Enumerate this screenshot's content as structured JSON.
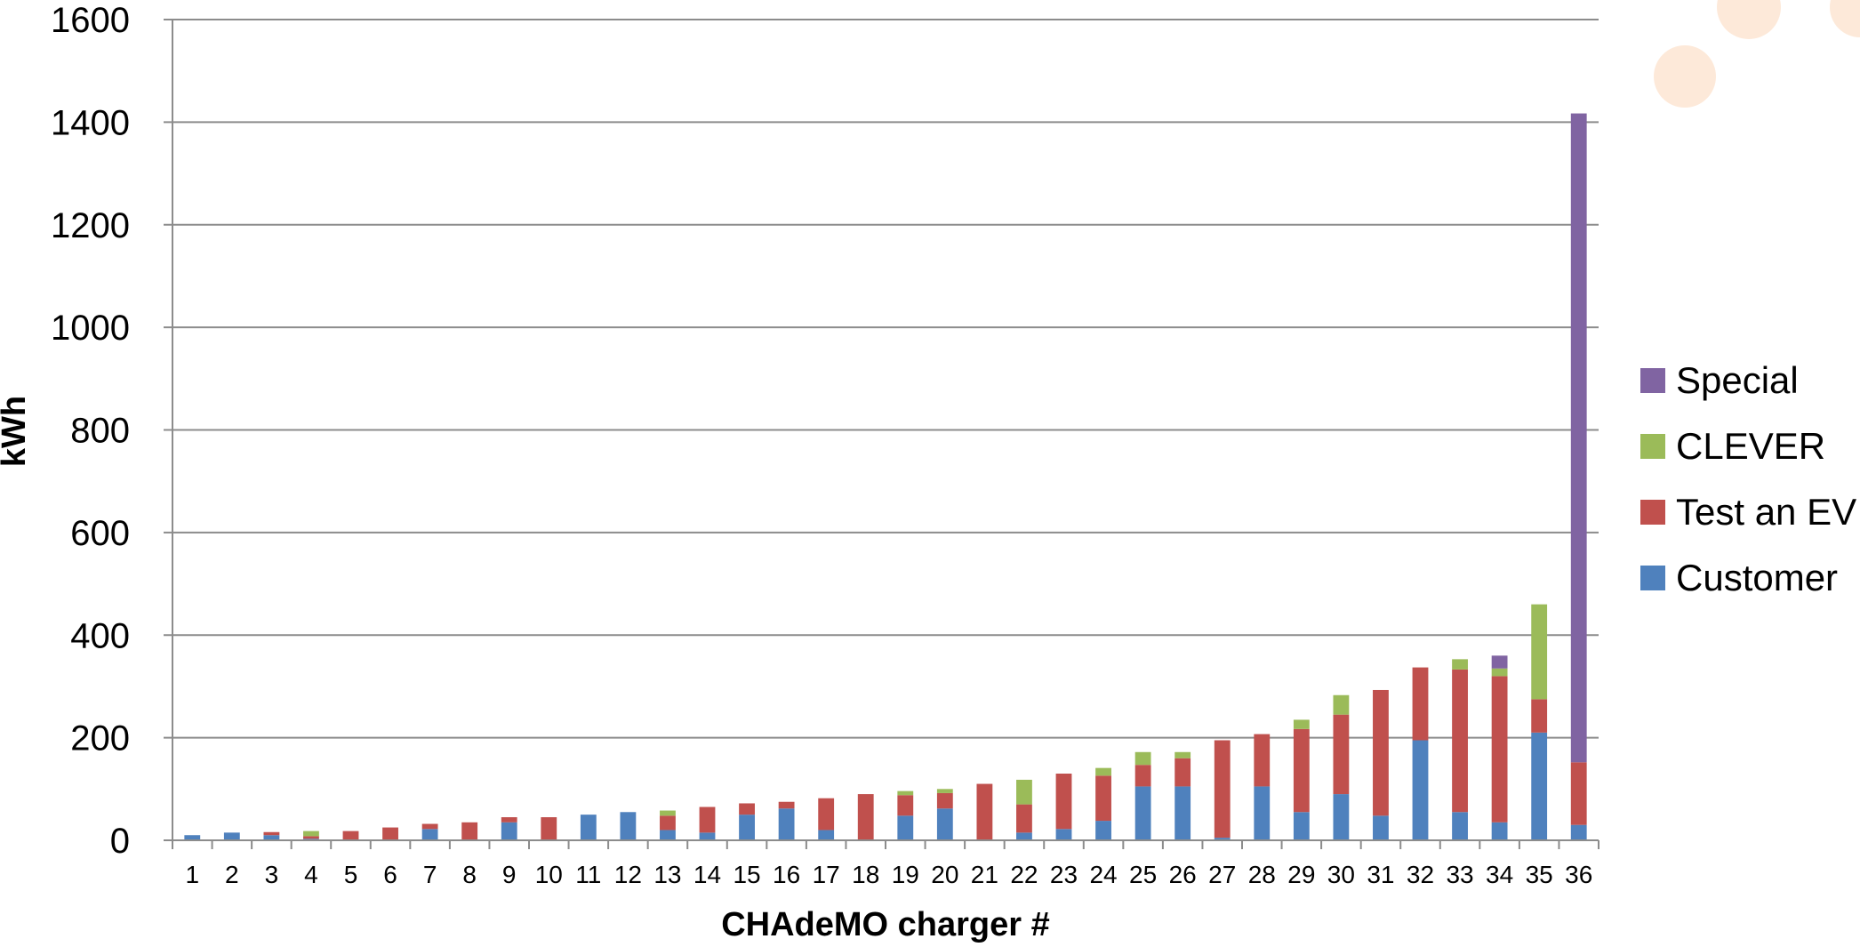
{
  "chart_data": {
    "type": "bar",
    "stacked": true,
    "xlabel": "CHAdeMO charger #",
    "ylabel": "kWh",
    "ylim": [
      0,
      1600
    ],
    "yticks": [
      0,
      200,
      400,
      600,
      800,
      1000,
      1200,
      1400,
      1600
    ],
    "grid": true,
    "legend_position": "right",
    "categories": [
      "1",
      "2",
      "3",
      "4",
      "5",
      "6",
      "7",
      "8",
      "9",
      "10",
      "11",
      "12",
      "13",
      "14",
      "15",
      "16",
      "17",
      "18",
      "19",
      "20",
      "21",
      "22",
      "23",
      "24",
      "25",
      "26",
      "27",
      "28",
      "29",
      "30",
      "31",
      "32",
      "33",
      "34",
      "35",
      "36"
    ],
    "series": [
      {
        "name": "Customer",
        "color": "#4f81bd",
        "values": [
          10,
          15,
          10,
          3,
          0,
          0,
          22,
          0,
          35,
          0,
          50,
          55,
          20,
          15,
          50,
          62,
          20,
          0,
          48,
          62,
          0,
          15,
          22,
          38,
          105,
          105,
          5,
          105,
          55,
          90,
          48,
          195,
          55,
          35,
          210,
          30
        ]
      },
      {
        "name": "Test an EV",
        "color": "#c0504d",
        "values": [
          0,
          0,
          6,
          5,
          18,
          25,
          10,
          35,
          10,
          45,
          0,
          0,
          28,
          50,
          22,
          13,
          62,
          90,
          40,
          30,
          110,
          55,
          108,
          88,
          42,
          55,
          190,
          102,
          162,
          155,
          245,
          142,
          278,
          285,
          65,
          122
        ]
      },
      {
        "name": "CLEVER",
        "color": "#9bbb59",
        "values": [
          0,
          0,
          0,
          10,
          0,
          0,
          0,
          0,
          0,
          0,
          0,
          0,
          10,
          0,
          0,
          0,
          0,
          0,
          8,
          8,
          0,
          48,
          0,
          15,
          25,
          12,
          0,
          0,
          18,
          38,
          0,
          0,
          20,
          15,
          185,
          0
        ]
      },
      {
        "name": "Special",
        "color": "#8064a2",
        "values": [
          0,
          0,
          0,
          0,
          0,
          0,
          0,
          0,
          0,
          0,
          0,
          0,
          0,
          0,
          0,
          0,
          0,
          0,
          0,
          0,
          0,
          0,
          0,
          0,
          0,
          0,
          0,
          0,
          0,
          0,
          0,
          0,
          0,
          25,
          0,
          1265
        ]
      }
    ]
  }
}
